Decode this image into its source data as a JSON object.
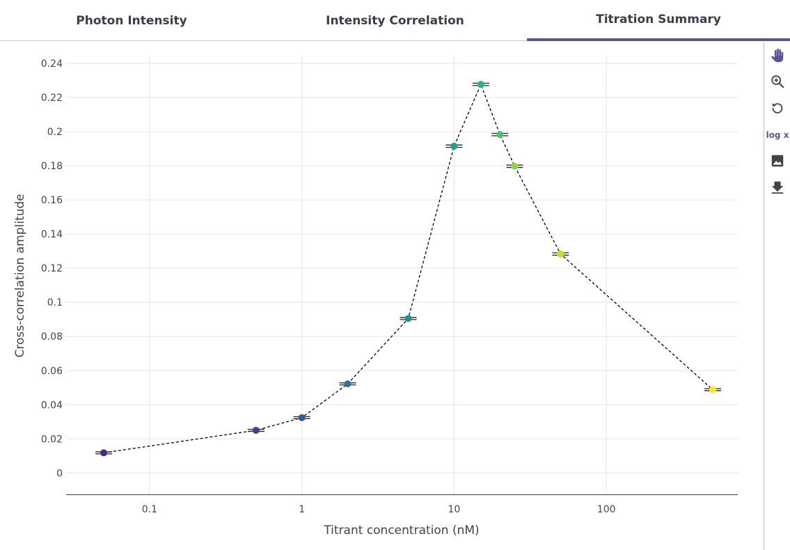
{
  "tabs": [
    {
      "label": "Photon Intensity"
    },
    {
      "label": "Intensity Correlation"
    },
    {
      "label": "Titration Summary"
    }
  ],
  "active_tab": 2,
  "toolbar": {
    "log_x_label": "log x",
    "icons": [
      "hand-pan-icon",
      "zoom-in-icon",
      "reset-icon",
      "log-x-toggle",
      "image-icon",
      "download-icon"
    ]
  },
  "colors": {
    "accent": "#5e5491",
    "line": "#000000"
  },
  "chart_data": {
    "type": "scatter",
    "title": "",
    "xlabel": "Titrant concentration (nM)",
    "ylabel": "Cross-correlation amplitude",
    "x_scale": "log",
    "xlim": [
      0.0283,
      730
    ],
    "ylim": [
      -0.0125,
      0.2445
    ],
    "x_ticks": [
      0.1,
      1,
      10,
      100
    ],
    "x_tick_labels": [
      "0.1",
      "1",
      "10",
      "100"
    ],
    "y_ticks": [
      0,
      0.02,
      0.04,
      0.06,
      0.08,
      0.1,
      0.12,
      0.14,
      0.16,
      0.18,
      0.2,
      0.22,
      0.24
    ],
    "y_tick_labels": [
      "0",
      "0.02",
      "0.04",
      "0.06",
      "0.08",
      "0.1",
      "0.12",
      "0.14",
      "0.16",
      "0.18",
      "0.2",
      "0.22",
      "0.24"
    ],
    "grid": true,
    "connect_points": "dashed",
    "points": [
      {
        "x": 0.05,
        "y": 0.0118,
        "err": 0.0006,
        "color": "#472b7a"
      },
      {
        "x": 0.5,
        "y": 0.025,
        "err": 0.0006,
        "color": "#433e85"
      },
      {
        "x": 1,
        "y": 0.0324,
        "err": 0.0006,
        "color": "#2c5f8a"
      },
      {
        "x": 2,
        "y": 0.0522,
        "err": 0.0006,
        "color": "#2a788e"
      },
      {
        "x": 5,
        "y": 0.0905,
        "err": 0.0006,
        "color": "#22918c"
      },
      {
        "x": 10,
        "y": 0.1915,
        "err": 0.0007,
        "color": "#1fa187"
      },
      {
        "x": 15,
        "y": 0.2277,
        "err": 0.0007,
        "color": "#2db27d"
      },
      {
        "x": 20,
        "y": 0.1983,
        "err": 0.0007,
        "color": "#4ac16d"
      },
      {
        "x": 25,
        "y": 0.1797,
        "err": 0.0007,
        "color": "#8ed645"
      },
      {
        "x": 50,
        "y": 0.1283,
        "err": 0.0007,
        "color": "#c0df25"
      },
      {
        "x": 500,
        "y": 0.0488,
        "err": 0.0006,
        "color": "#fde725"
      }
    ]
  }
}
